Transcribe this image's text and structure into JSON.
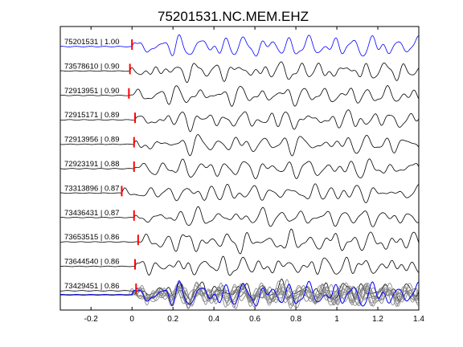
{
  "chart_data": {
    "type": "line",
    "title": "75201531.NC.MEM.EHZ",
    "xlabel": "",
    "ylabel": "",
    "xlim": [
      -0.35,
      1.4
    ],
    "x_ticks": [
      -0.2,
      0,
      0.2,
      0.4,
      0.6,
      0.8,
      1,
      1.2,
      1.4
    ],
    "x_tick_labels": [
      "-0.2",
      "0",
      "0.2",
      "0.4",
      "0.6",
      "0.8",
      "1",
      "1.2",
      "1.4"
    ],
    "grid": false,
    "colors": {
      "reference": "#0000ff",
      "trace": "#000000",
      "stack": "#808080",
      "pick": "#ff0000"
    },
    "series": [
      {
        "label": "75201531 | 1.00",
        "pick_time": 0.0,
        "color": "#0000ff"
      },
      {
        "label": "73578610 | 0.90",
        "pick_time": -0.01,
        "color": "#000000"
      },
      {
        "label": "72913951 | 0.90",
        "pick_time": -0.015,
        "color": "#000000"
      },
      {
        "label": "72915171 | 0.89",
        "pick_time": 0.015,
        "color": "#000000"
      },
      {
        "label": "72913956 | 0.89",
        "pick_time": 0.01,
        "color": "#000000"
      },
      {
        "label": "72923191 | 0.88",
        "pick_time": 0.01,
        "color": "#000000"
      },
      {
        "label": "73313896 | 0.87",
        "pick_time": -0.05,
        "color": "#000000"
      },
      {
        "label": "73436431 | 0.87",
        "pick_time": 0.01,
        "color": "#000000"
      },
      {
        "label": "73653515 | 0.86",
        "pick_time": 0.03,
        "color": "#000000"
      },
      {
        "label": "73644540 | 0.86",
        "pick_time": 0.015,
        "color": "#000000"
      },
      {
        "label": "73429451 | 0.86",
        "pick_time": 0.02,
        "color": "#000000"
      }
    ],
    "stack": {
      "series_count": 11,
      "reference_color": "#0000ff",
      "others_color": "#808080"
    }
  }
}
